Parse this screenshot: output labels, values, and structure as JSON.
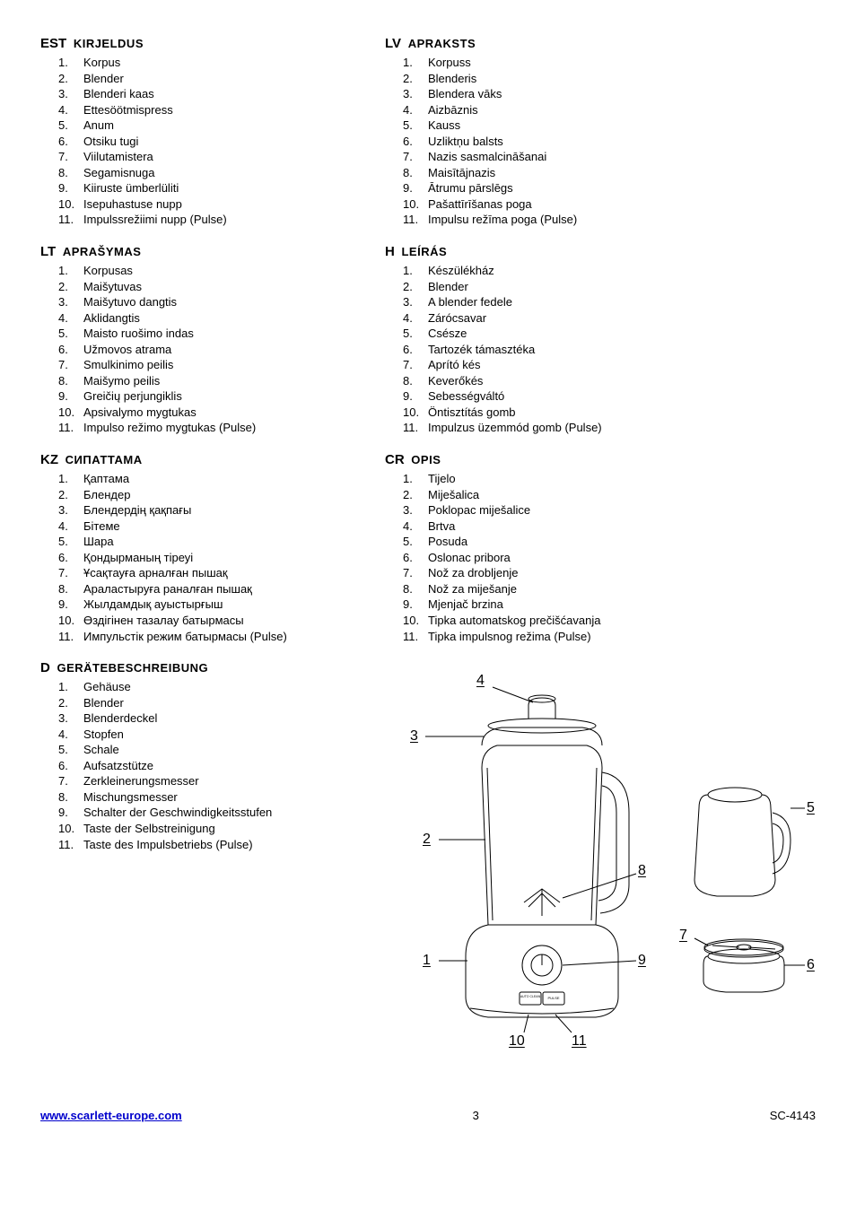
{
  "sections_left": [
    {
      "lang": "EST",
      "title": "KIRJELDUS",
      "items": [
        "Korpus",
        "Blender",
        "Blenderi kaas",
        "Ettesöötmispress",
        "Anum",
        "Otsiku tugi",
        "Viilutamistera",
        "Segamisnuga",
        "Kiiruste ümberlüliti",
        "Isepuhastuse nupp",
        "Impulssrežiimi nupp (Pulse)"
      ]
    },
    {
      "lang": "LT",
      "title": "APRAŠYMAS",
      "items": [
        "Korpusas",
        "Maišytuvas",
        "Maišytuvo dangtis",
        "Aklidangtis",
        "Maisto ruošimo indas",
        "Užmovos atrama",
        "Smulkinimo peilis",
        "Maišymo peilis",
        "Greičių perjungiklis",
        "Apsivalymo mygtukas",
        "Impulso režimo mygtukas (Pulse)"
      ]
    },
    {
      "lang": "KZ",
      "title": "СИПАТТАМА",
      "items": [
        "Қаптама",
        "Блендер",
        "Блендердің қақпағы",
        "Бітеме",
        "Шара",
        "Қондырманың тіреуі",
        "Ұсақтауға арналған пышақ",
        "Араластыруға раналған пышақ",
        "Жылдамдық ауыстырғыш",
        "Өздігінен тазалау батырмасы",
        "Импульстік режим батырмасы (Pulse)"
      ]
    },
    {
      "lang": "D",
      "title": "GERÄTEBESCHREIBUNG",
      "items": [
        "Gehäuse",
        "Blender",
        "Blenderdeckel",
        "Stopfen",
        "Schale",
        "Aufsatzstütze",
        "Zerkleinerungsmesser",
        "Mischungsmesser",
        "Schalter der Geschwindigkeitsstufen",
        "Taste der Selbstreinigung",
        "Taste des Impulsbetriebs (Pulse)"
      ]
    }
  ],
  "sections_right": [
    {
      "lang": "LV",
      "title": "APRAKSTS",
      "items": [
        "Korpuss",
        "Blenderis",
        "Blendera vāks",
        "Aizbāznis",
        "Kauss",
        "Uzliktņu balsts",
        "Nazis sasmalcināšanai",
        "Maisītājnazis",
        "Ātrumu pārslēgs",
        "Pašattīrīšanas poga",
        "Impulsu režīma poga (Pulse)"
      ]
    },
    {
      "lang": "H",
      "title": "LEÍRÁS",
      "items": [
        "Készülékház",
        "Blender",
        "A blender fedele",
        "Zárócsavar",
        "Csésze",
        "Tartozék támasztéka",
        "Aprító kés",
        "Keverőkés",
        "Sebességváltó",
        "Öntisztítás gomb",
        "Impulzus üzemmód gomb (Pulse)"
      ]
    },
    {
      "lang": "CR",
      "title": "OPIS",
      "items": [
        "Tijelo",
        "Miješalica",
        "Poklopac miješalice",
        "Brtva",
        "Posuda",
        "Oslonac pribora",
        "Nož za drobljenje",
        "Nož za miješanje",
        "Mjenjač brzina",
        "Tipka automatskog prečišćavanja",
        "Tipka impulsnog režima (Pulse)"
      ]
    }
  ],
  "footer": {
    "url": "www.scarlett-europe.com",
    "page": "3",
    "model": "SC-4143"
  },
  "diagram": {
    "callouts": [
      "1",
      "2",
      "3",
      "4",
      "5",
      "6",
      "7",
      "8",
      "9",
      "10",
      "11"
    ],
    "button_left": "AUTO CLEAN",
    "button_right": "PULSE"
  }
}
